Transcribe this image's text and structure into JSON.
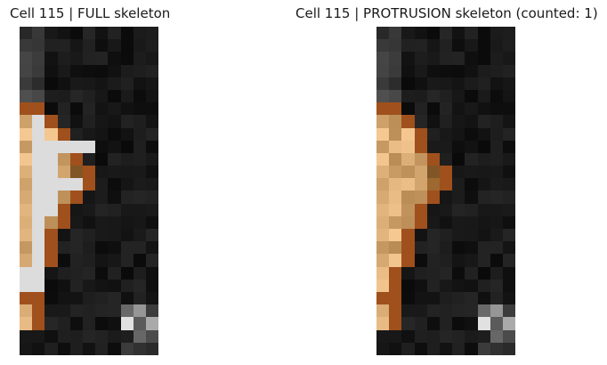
{
  "panels": [
    {
      "title": "Cell 115 | FULL skeleton"
    },
    {
      "title": "Cell 115 | PROTRUSION skeleton (counted: 1)"
    }
  ],
  "colors": {
    "background": "#ffffff",
    "boundary": "#a0501c",
    "cell_fill": "#caa06a",
    "cell_fill_light": "#f5d8a8",
    "cell_fill_dark": "#7a5228",
    "skeleton": "#dcdcdc"
  }
}
